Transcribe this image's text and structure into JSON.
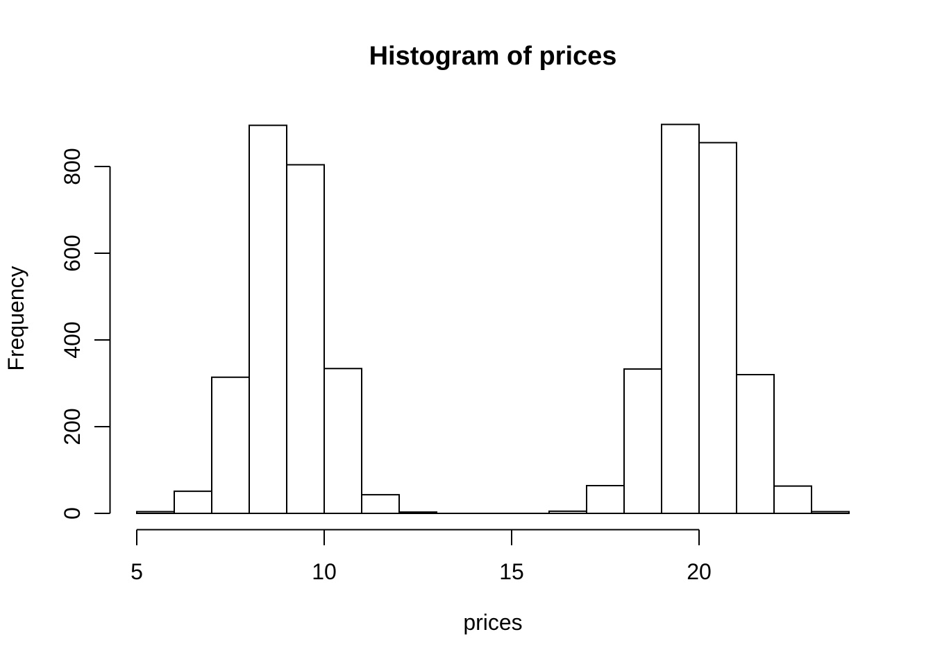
{
  "chart_data": {
    "type": "bar",
    "subtype": "histogram",
    "title": "Histogram of prices",
    "xlabel": "prices",
    "ylabel": "Frequency",
    "bin_start": 5,
    "bin_width": 1,
    "bin_edges": [
      5,
      6,
      7,
      8,
      9,
      10,
      11,
      12,
      13,
      14,
      15,
      16,
      17,
      18,
      19,
      20,
      21,
      22,
      23,
      24
    ],
    "frequencies": [
      4,
      51,
      314,
      895,
      804,
      334,
      43,
      3,
      0,
      0,
      0,
      5,
      64,
      333,
      897,
      855,
      320,
      63,
      4
    ],
    "x_axis": {
      "ticks": [
        5,
        10,
        15,
        20
      ],
      "label": "prices"
    },
    "y_axis": {
      "ticks": [
        0,
        200,
        400,
        600,
        800
      ],
      "label": "Frequency"
    },
    "xlim": [
      5,
      24
    ],
    "ylim": [
      0,
      900
    ],
    "grid": false,
    "legend": null,
    "colors": {
      "background": "#ffffff",
      "bar_fill": "#ffffff",
      "bar_stroke": "#000000",
      "axis": "#000000",
      "text": "#000000"
    }
  }
}
